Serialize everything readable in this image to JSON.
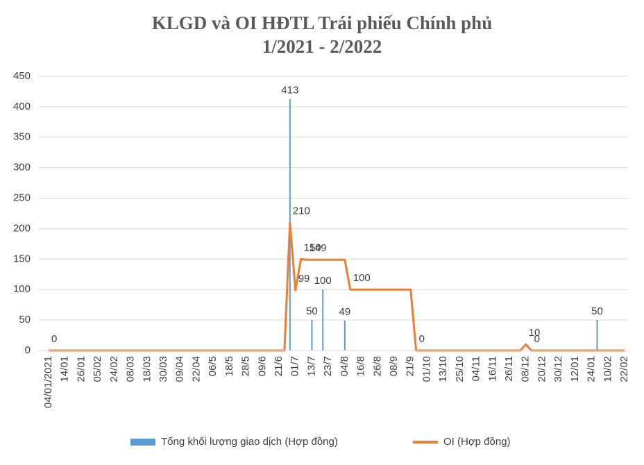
{
  "chart_data": {
    "type": "bar-line",
    "title": "KLGD và OI HĐTL Trái phiếu Chính phủ",
    "subtitle": "1/2021 - 2/2022",
    "categories": [
      "04/01/2021",
      null,
      null,
      "14/01",
      null,
      null,
      "26/01",
      null,
      null,
      "05/02",
      null,
      null,
      "24/02",
      null,
      null,
      "08/03",
      null,
      null,
      "18/03",
      null,
      null,
      "30/03",
      null,
      null,
      "09/04",
      null,
      null,
      "22/04",
      null,
      null,
      "06/5",
      null,
      null,
      "18/5",
      null,
      null,
      "28/5",
      null,
      null,
      "09/6",
      null,
      null,
      "21/6",
      null,
      null,
      "01/7",
      null,
      null,
      "13/7",
      null,
      null,
      "23/7",
      null,
      null,
      "04/8",
      null,
      null,
      "16/8",
      null,
      null,
      "26/8",
      null,
      null,
      "08/9",
      null,
      null,
      "21/9",
      null,
      null,
      "01/10",
      null,
      null,
      "13/10",
      null,
      null,
      "25/10",
      null,
      null,
      "04/11",
      null,
      null,
      "16/11",
      null,
      null,
      "26/11",
      null,
      null,
      "08/12",
      null,
      null,
      "20/12",
      null,
      null,
      "30/12",
      null,
      null,
      "12/01",
      null,
      null,
      "24/01",
      null,
      null,
      "10/02",
      null,
      null,
      "22/02"
    ],
    "series": [
      {
        "name": "Tổng khối lượng giao dịch  (Hợp đồng)",
        "color": "#5b9bd5",
        "kind": "bar",
        "values": [
          0,
          0,
          0,
          0,
          0,
          0,
          0,
          0,
          0,
          0,
          0,
          0,
          0,
          0,
          0,
          0,
          0,
          0,
          0,
          0,
          0,
          0,
          0,
          0,
          0,
          0,
          0,
          0,
          0,
          0,
          0,
          0,
          0,
          0,
          0,
          0,
          0,
          0,
          0,
          0,
          0,
          0,
          0,
          0,
          413,
          0,
          0,
          0,
          50,
          0,
          100,
          0,
          0,
          0,
          49,
          0,
          0,
          0,
          0,
          0,
          0,
          0,
          0,
          0,
          0,
          0,
          0,
          0,
          0,
          0,
          0,
          0,
          0,
          0,
          0,
          0,
          0,
          0,
          0,
          0,
          0,
          0,
          0,
          0,
          0,
          0,
          0,
          0,
          0,
          0,
          0,
          0,
          0,
          0,
          0,
          0,
          0,
          0,
          0,
          0,
          50,
          0,
          0,
          0,
          0,
          0
        ]
      },
      {
        "name": "OI (Hợp đồng)",
        "color": "#ed7d31",
        "kind": "line",
        "values": [
          0,
          0,
          0,
          0,
          0,
          0,
          0,
          0,
          0,
          0,
          0,
          0,
          0,
          0,
          0,
          0,
          0,
          0,
          0,
          0,
          0,
          0,
          0,
          0,
          0,
          0,
          0,
          0,
          0,
          0,
          0,
          0,
          0,
          0,
          0,
          0,
          0,
          0,
          0,
          0,
          0,
          0,
          0,
          0,
          210,
          99,
          150,
          149,
          149,
          149,
          149,
          149,
          149,
          149,
          149,
          100,
          100,
          100,
          100,
          100,
          100,
          100,
          100,
          100,
          100,
          100,
          100,
          0,
          0,
          0,
          0,
          0,
          0,
          0,
          0,
          0,
          0,
          0,
          0,
          0,
          0,
          0,
          0,
          0,
          0,
          0,
          0,
          10,
          0,
          0,
          0,
          0,
          0,
          0,
          0,
          0,
          0,
          0,
          0,
          0,
          0,
          0,
          0,
          0,
          0,
          0
        ]
      }
    ],
    "ylim": [
      0,
      450
    ],
    "yticks": [
      0,
      50,
      100,
      150,
      200,
      250,
      300,
      350,
      400,
      450
    ],
    "grid": true,
    "legend": "bottom"
  }
}
